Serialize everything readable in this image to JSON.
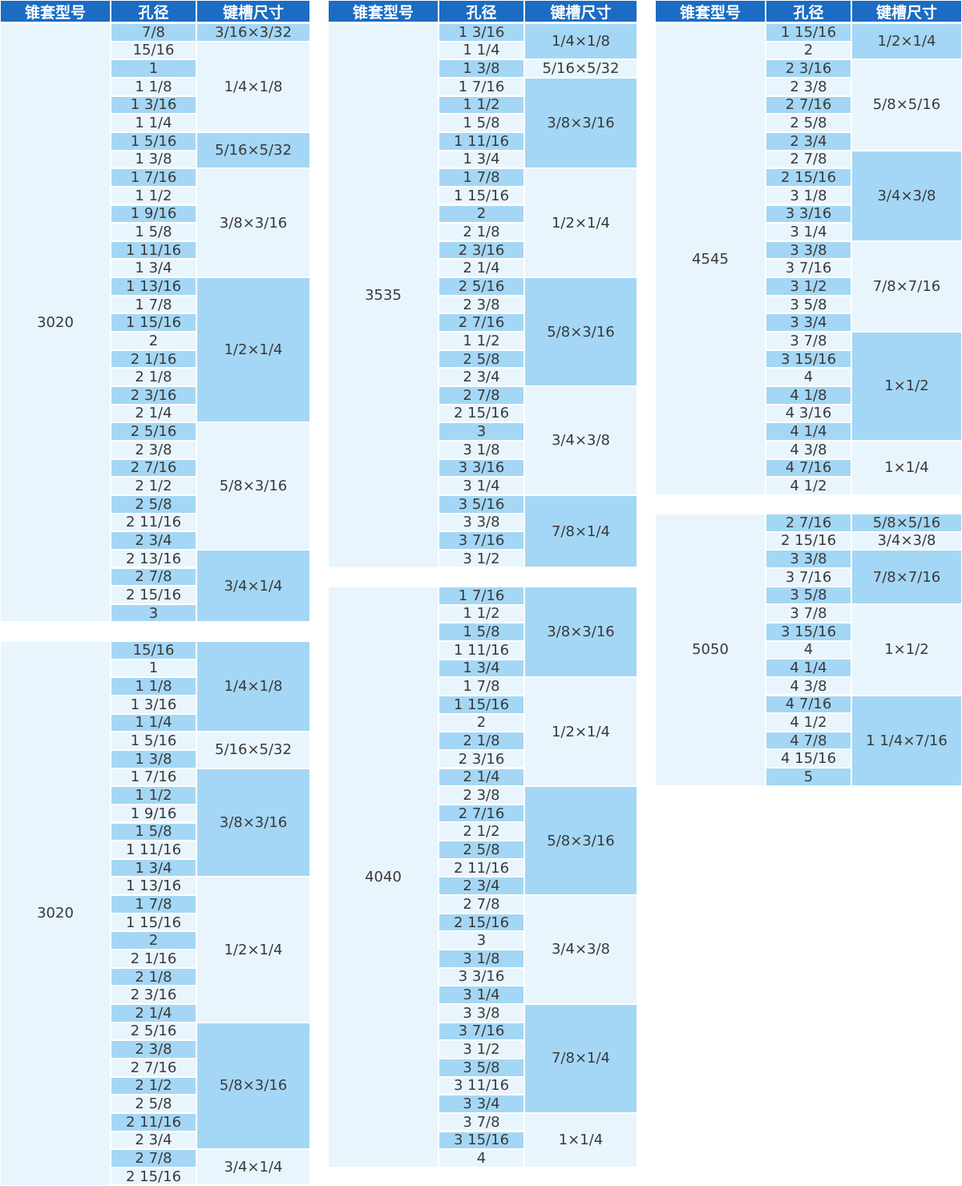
{
  "headers": [
    "锥套型号",
    "孔径",
    "键槽尺寸"
  ],
  "tables": [
    {
      "model": "3020",
      "groups": [
        {
          "key": "3/16×3/32",
          "bores": [
            "7/8"
          ]
        },
        {
          "key": "1/4×1/8",
          "bores": [
            "15/16",
            "1",
            "1 1/8",
            "1 3/16",
            "1 1/4"
          ]
        },
        {
          "key": "5/16×5/32",
          "bores": [
            "1 5/16",
            "1 3/8"
          ]
        },
        {
          "key": "3/8×3/16",
          "bores": [
            "1 7/16",
            "1 1/2",
            "1 9/16",
            "1 5/8",
            "1 11/16",
            "1 3/4"
          ]
        },
        {
          "key": "1/2×1/4",
          "bores": [
            "1 13/16",
            "1 7/8",
            "1 15/16",
            "2",
            "2 1/16",
            "2 1/8",
            "2 3/16",
            "2 1/4"
          ]
        },
        {
          "key": "5/8×3/16",
          "bores": [
            "2 5/16",
            "2 3/8",
            "2 7/16",
            "2 1/2",
            "2 5/8",
            "2 11/16",
            "2 3/4"
          ]
        },
        {
          "key": "3/4×1/4",
          "bores": [
            "2 13/16",
            "2 7/8",
            "2 15/16",
            "3"
          ]
        }
      ]
    },
    {
      "model": "3020",
      "groups": [
        {
          "key": "1/4×1/8",
          "bores": [
            "15/16",
            "1",
            "1 1/8",
            "1 3/16",
            "1 1/4"
          ]
        },
        {
          "key": "5/16×5/32",
          "bores": [
            "1 5/16",
            "1 3/8"
          ]
        },
        {
          "key": "3/8×3/16",
          "bores": [
            "1 7/16",
            "1 1/2",
            "1 9/16",
            "1 5/8",
            "1 11/16",
            "1 3/4"
          ]
        },
        {
          "key": "1/2×1/4",
          "bores": [
            "1 13/16",
            "1 7/8",
            "1 15/16",
            "2",
            "2 1/16",
            "2 1/8",
            "2 3/16",
            "2 1/4"
          ]
        },
        {
          "key": "5/8×3/16",
          "bores": [
            "2 5/16",
            "2 3/8",
            "2 7/16",
            "2 1/2",
            "2 5/8",
            "2 11/16",
            "2 3/4"
          ]
        },
        {
          "key": "3/4×1/4",
          "bores": [
            "2 7/8",
            "2 15/16"
          ]
        }
      ]
    },
    {
      "model": "3535",
      "groups": [
        {
          "key": "1/4×1/8",
          "bores": [
            "1 3/16",
            "1 1/4"
          ]
        },
        {
          "key": "5/16×5/32",
          "bores": [
            "1 3/8"
          ]
        },
        {
          "key": "3/8×3/16",
          "bores": [
            "1 7/16",
            "1 1/2",
            "1 5/8",
            "1 11/16",
            "1 3/4"
          ]
        },
        {
          "key": "1/2×1/4",
          "bores": [
            "1 7/8",
            "1 15/16",
            "2",
            "2 1/8",
            "2 3/16",
            "2 1/4"
          ]
        },
        {
          "key": "5/8×3/16",
          "bores": [
            "2 5/16",
            "2 3/8",
            "2 7/16",
            "1 1/2",
            "2 5/8",
            "2 3/4"
          ]
        },
        {
          "key": "3/4×3/8",
          "bores": [
            "2 7/8",
            "2 15/16",
            "3",
            "3 1/8",
            "3 3/16",
            "3 1/4"
          ]
        },
        {
          "key": "7/8×1/4",
          "bores": [
            "3 5/16",
            "3 3/8",
            "3 7/16",
            "3 1/2"
          ]
        }
      ]
    },
    {
      "model": "4040",
      "groups": [
        {
          "key": "3/8×3/16",
          "bores": [
            "1 7/16",
            "1 1/2",
            "1 5/8",
            "1 11/16",
            "1 3/4"
          ]
        },
        {
          "key": "1/2×1/4",
          "bores": [
            "1 7/8",
            "1 15/16",
            "2",
            "2 1/8",
            "2 3/16",
            "2 1/4"
          ]
        },
        {
          "key": "5/8×3/16",
          "bores": [
            "2 3/8",
            "2 7/16",
            "2 1/2",
            "2 5/8",
            "2 11/16",
            "2 3/4"
          ]
        },
        {
          "key": "3/4×3/8",
          "bores": [
            "2 7/8",
            "2 15/16",
            "3",
            "3 1/8",
            "3 3/16",
            "3 1/4"
          ]
        },
        {
          "key": "7/8×1/4",
          "bores": [
            "3 3/8",
            "3 7/16",
            "3 1/2",
            "3 5/8",
            "3 11/16",
            "3 3/4"
          ]
        },
        {
          "key": "1×1/4",
          "bores": [
            "3 7/8",
            "3 15/16",
            "4"
          ]
        }
      ]
    },
    {
      "model": "4545",
      "groups": [
        {
          "key": "1/2×1/4",
          "bores": [
            "1 15/16",
            "2"
          ]
        },
        {
          "key": "5/8×5/16",
          "bores": [
            "2 3/16",
            "2 3/8",
            "2 7/16",
            "2 5/8",
            "2 3/4"
          ]
        },
        {
          "key": "3/4×3/8",
          "bores": [
            "2 7/8",
            "2 15/16",
            "3 1/8",
            "3 3/16",
            "3 1/4"
          ]
        },
        {
          "key": "7/8×7/16",
          "bores": [
            "3 3/8",
            "3 7/16",
            "3 1/2",
            "3 5/8",
            "3 3/4"
          ]
        },
        {
          "key": "1×1/2",
          "bores": [
            "3 7/8",
            "3 15/16",
            "4",
            "4 1/8",
            "4 3/16",
            "4 1/4"
          ]
        },
        {
          "key": "1×1/4",
          "bores": [
            "4 3/8",
            "4 7/16",
            "4 1/2"
          ]
        }
      ]
    },
    {
      "model": "5050",
      "groups": [
        {
          "key": "5/8×5/16",
          "bores": [
            "2 7/16"
          ]
        },
        {
          "key": "3/4×3/8",
          "bores": [
            "2 15/16"
          ]
        },
        {
          "key": "7/8×7/16",
          "bores": [
            "3 3/8",
            "3 7/16",
            "3 5/8"
          ]
        },
        {
          "key": "1×1/2",
          "bores": [
            "3 7/8",
            "3 15/16",
            "4",
            "4 1/4",
            "4 3/8"
          ]
        },
        {
          "key": "1 1/4×7/16",
          "bores": [
            "4 7/16",
            "4 1/2",
            "4 7/8",
            "4 15/16",
            "5"
          ]
        }
      ]
    }
  ]
}
